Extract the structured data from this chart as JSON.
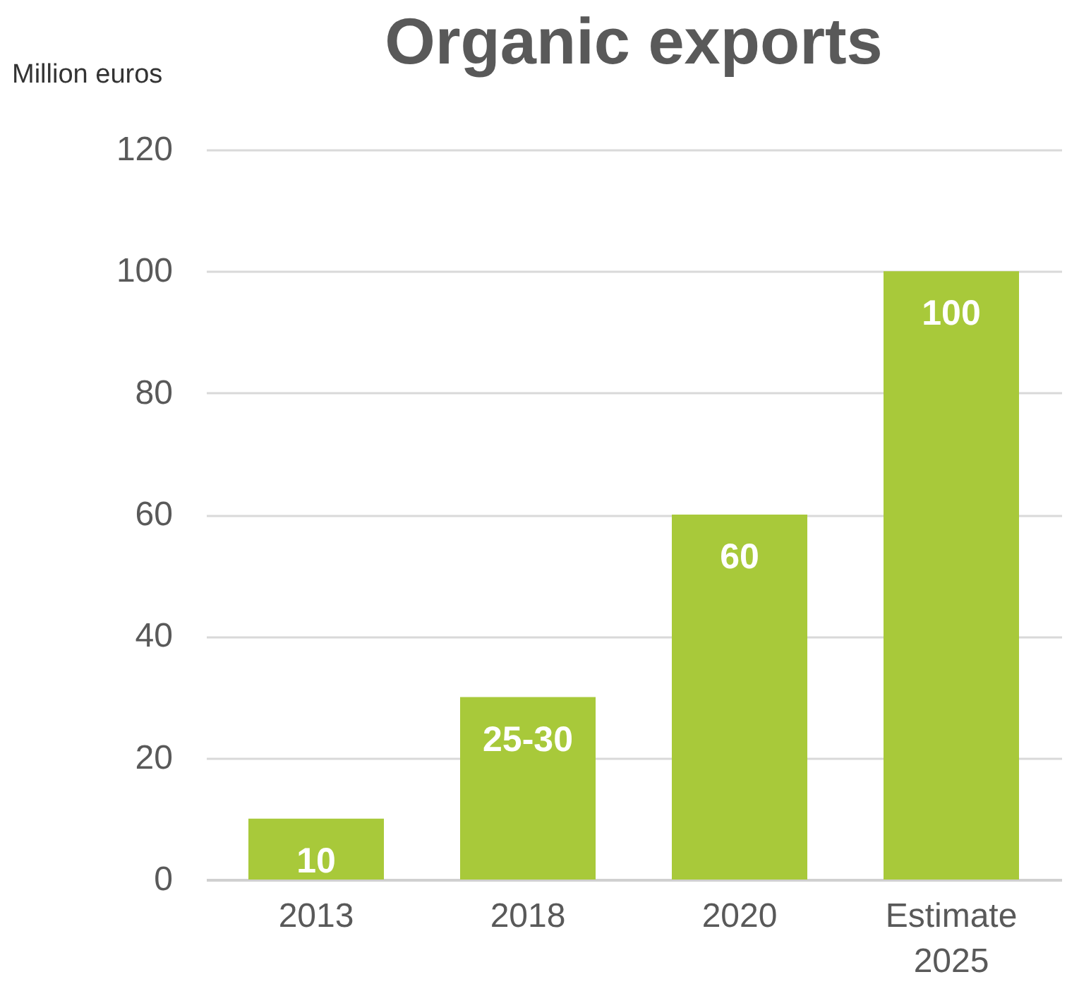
{
  "chart_data": {
    "type": "bar",
    "title": "Organic exports",
    "ylabel": "Million euros",
    "categories": [
      "2013",
      "2018",
      "2020",
      "Estimate 2025"
    ],
    "values": [
      10,
      30,
      60,
      100
    ],
    "value_labels": [
      "10",
      "25-30",
      "60",
      "100"
    ],
    "color": "#a8c93a",
    "ylim": [
      0,
      120
    ],
    "yticks": [
      0,
      20,
      40,
      60,
      80,
      100,
      120
    ],
    "grid": "y"
  }
}
